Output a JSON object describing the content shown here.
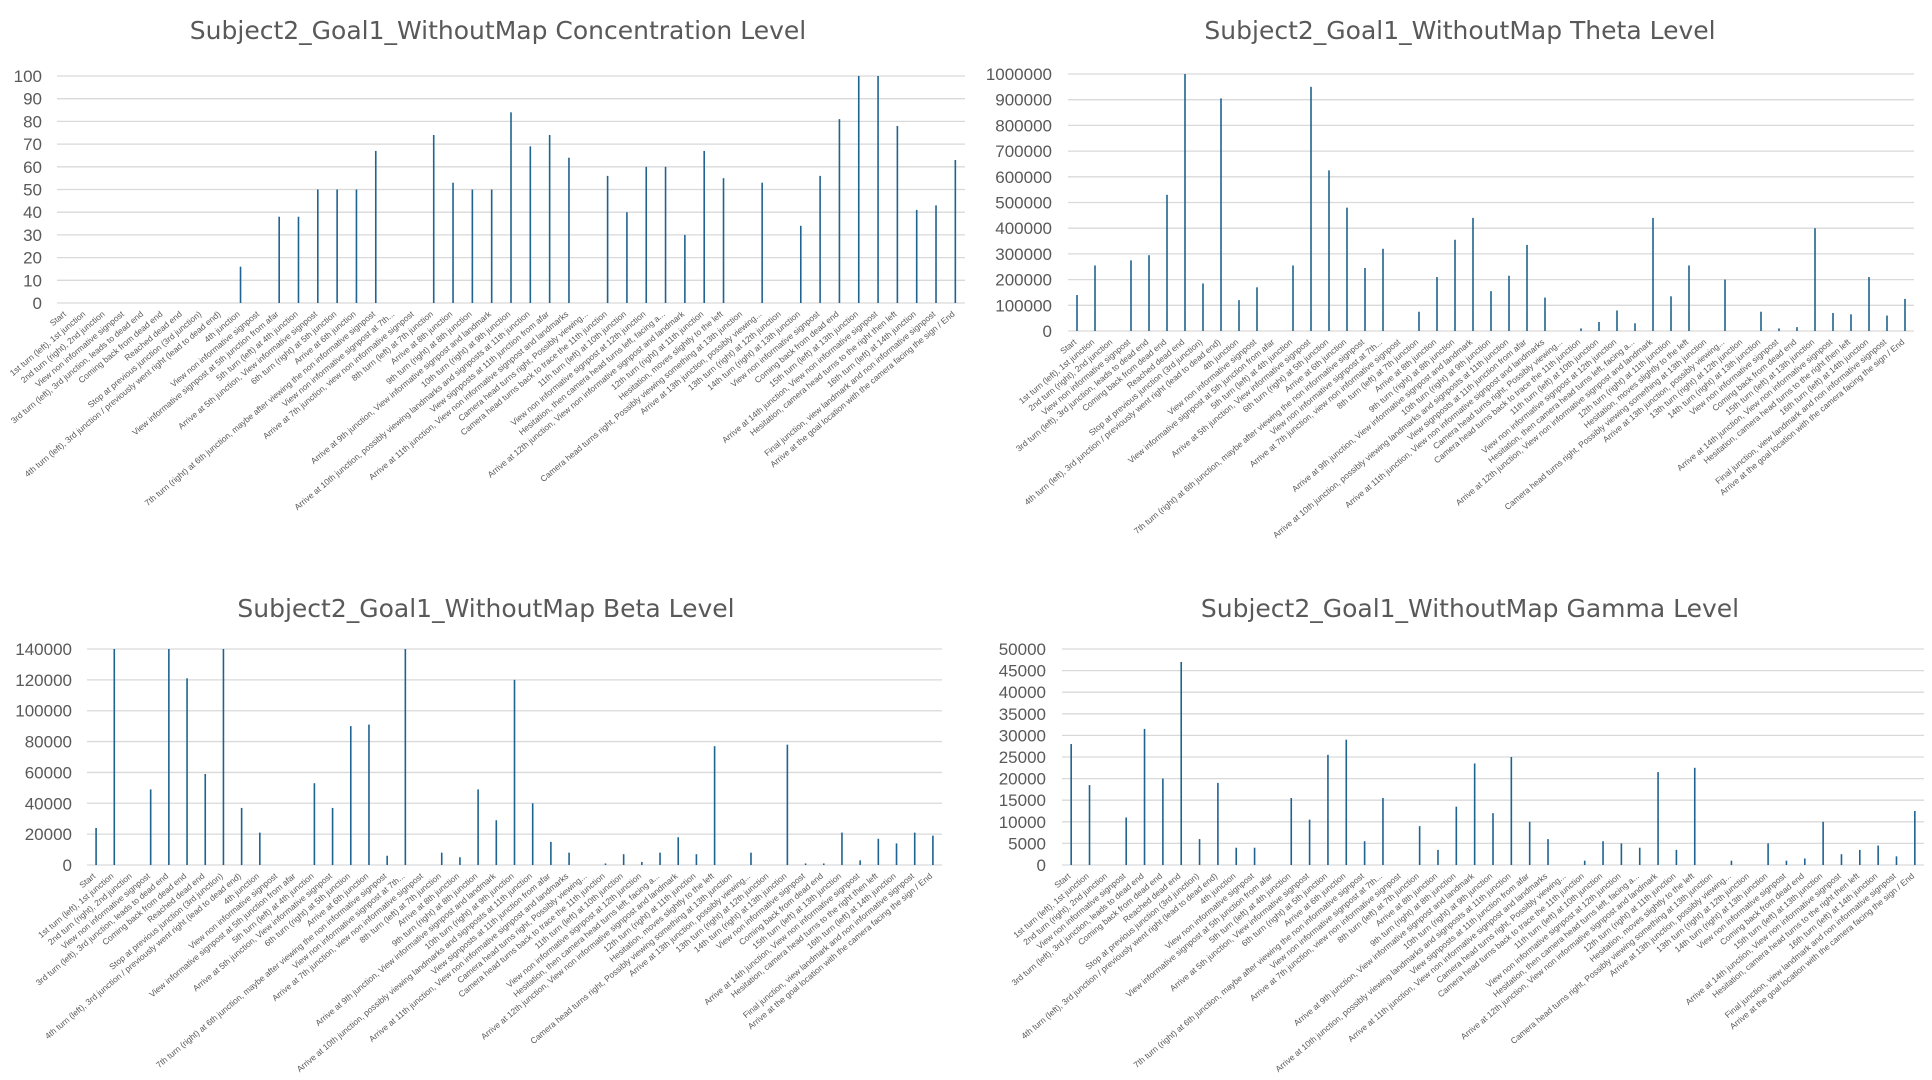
{
  "colors": {
    "bar": "#1f6391",
    "grid": "#d9d9d9",
    "text": "#595959"
  },
  "categories": [
    "Start",
    "1st turn (left), 1st junction",
    "2nd turn (right), 2nd junction",
    "View non informative signpost",
    "3rd turn (left), 3rd junction, leads to dead end",
    "Coming back from dead end",
    "Reached dead end",
    "Stop at previous junction (3rd junction)",
    "4th turn (left), 3rd junction / previously went right (lead to dead end)",
    "4th junction",
    "View non informative signpost",
    "View informative signpost at 5th junction from afar",
    "5th turn (left) at 4th junction",
    "Arrive at 5th junction, View informative signpost",
    "6th turn (right) at 5th junction",
    "Arrive at 6th junction",
    "7th turn (right) at 6th junction, maybe after viewing the non informative signpost",
    "View non informative signpost at 7th...",
    "Arrive at 7th junction, view non informative signpost",
    "8th turn (left) at 7th junction",
    "Arrive at 8th junction",
    "9th turn (right) at 8th junction",
    "Arrive at 9th junction, View informative signpost and landmark",
    "10th turn (right) at 9th junction",
    "Arrive at 10th junction, possibly viewing landmarks and signposts at 11th junction",
    "View signposts at 11th junction from afar",
    "Arrive at 11th junction, View non informative signpost and landmarks",
    "Camera head turns right, Possibly viewing...",
    "Camera head turns back to trace the 11th junction",
    "11th turn (left) at 10th junction",
    "View non informative signpost at 12th junction",
    "Hesitation, then camera head turns left, facing a...",
    "Arrive at 12th junction, View non informative signpost and landmark",
    "12th turn (right) at 11th junction",
    "Hesitation, moves slightly to the left",
    "Camera head turns right, Possibly viewing something at 13th junction",
    "Arrive at 13th junction, possibly viewing...",
    "13th turn (right) at 12th junction",
    "14th turn (right) at 13th junction",
    "View non informative signpost",
    "Coming back from dead end",
    "15th turn (left) at 13th junction",
    "Arrive at 14th junction, View non informative signpost",
    "Hesitation, camera head turns to the right then left",
    "16th turn (left) at 14th junction",
    "Final junction, view landmark and non informative signpost",
    "Arrive at the goal location with the camera facing the sign / End"
  ],
  "chart_data": [
    {
      "type": "bar",
      "title": "Subject2_Goal1_WithoutMap Concentration Level",
      "ylim": [
        0,
        100
      ],
      "yticks": [
        "0",
        "10",
        "20",
        "30",
        "40",
        "50",
        "60",
        "70",
        "80",
        "90",
        "100"
      ],
      "grid": true,
      "values": {
        "9": 16,
        "11": 38,
        "12": 38,
        "13": 50,
        "14": 50,
        "15": 50,
        "16": 67,
        "19": 74,
        "20": 53,
        "21": 50,
        "22": 50,
        "23": 84,
        "24": 69,
        "25": 74,
        "26": 64,
        "28": 56,
        "29": 40,
        "30": 60,
        "31": 60,
        "32": 30,
        "33": 67,
        "34": 55,
        "36": 53,
        "38": 34,
        "39": 56,
        "40": 81,
        "41": 100,
        "42": 100,
        "43": 78,
        "44": 41,
        "45": 43,
        "46": 63
      }
    },
    {
      "type": "bar",
      "title": "Subject2_Goal1_WithoutMap Theta Level",
      "ylim": [
        0,
        1000000
      ],
      "yticks": [
        "0",
        "100000",
        "200000",
        "300000",
        "400000",
        "500000",
        "600000",
        "700000",
        "800000",
        "900000",
        "1000000"
      ],
      "grid": true,
      "values": {
        "0": 140000,
        "1": 255000,
        "3": 275000,
        "4": 295000,
        "5": 530000,
        "6": 1000000,
        "7": 185000,
        "8": 905000,
        "9": 120000,
        "10": 170000,
        "12": 255000,
        "13": 950000,
        "14": 625000,
        "15": 480000,
        "16": 245000,
        "17": 320000,
        "19": 75000,
        "20": 210000,
        "21": 355000,
        "22": 440000,
        "23": 155000,
        "24": 215000,
        "25": 335000,
        "26": 130000,
        "28": 10000,
        "29": 35000,
        "30": 80000,
        "31": 30000,
        "32": 440000,
        "33": 135000,
        "34": 255000,
        "36": 200000,
        "38": 75000,
        "39": 10000,
        "40": 15000,
        "41": 400000,
        "42": 70000,
        "43": 65000,
        "44": 210000,
        "45": 60000,
        "46": 125000
      }
    },
    {
      "type": "bar",
      "title": "Subject2_Goal1_WithoutMap Beta Level",
      "ylim": [
        0,
        140000
      ],
      "yticks": [
        "0",
        "20000",
        "40000",
        "60000",
        "80000",
        "100000",
        "120000",
        "140000"
      ],
      "grid": true,
      "values": {
        "0": 24000,
        "1": 140000,
        "3": 49000,
        "4": 140000,
        "5": 121000,
        "6": 59000,
        "7": 140000,
        "8": 37000,
        "9": 21000,
        "12": 53000,
        "13": 37000,
        "14": 90000,
        "15": 91000,
        "16": 6000,
        "17": 140000,
        "19": 8000,
        "20": 5000,
        "21": 49000,
        "22": 29000,
        "23": 120000,
        "24": 40000,
        "25": 15000,
        "26": 8000,
        "28": 1000,
        "29": 7000,
        "30": 2000,
        "31": 8000,
        "32": 18000,
        "33": 7000,
        "34": 77000,
        "36": 8000,
        "38": 78000,
        "39": 1000,
        "40": 1000,
        "41": 21000,
        "42": 3000,
        "43": 17000,
        "44": 14000,
        "45": 21000,
        "46": 19000
      }
    },
    {
      "type": "bar",
      "title": "Subject2_Goal1_WithoutMap Gamma Level",
      "ylim": [
        0,
        50000
      ],
      "yticks": [
        "0",
        "5000",
        "10000",
        "15000",
        "20000",
        "25000",
        "30000",
        "35000",
        "40000",
        "45000",
        "50000"
      ],
      "grid": true,
      "values": {
        "0": 28000,
        "1": 18500,
        "3": 11000,
        "4": 31500,
        "5": 20000,
        "6": 47000,
        "7": 6000,
        "8": 19000,
        "9": 4000,
        "10": 4000,
        "12": 15500,
        "13": 10500,
        "14": 25500,
        "15": 29000,
        "16": 5500,
        "17": 15500,
        "19": 9000,
        "20": 3500,
        "21": 13500,
        "22": 23500,
        "23": 12000,
        "24": 25000,
        "25": 10000,
        "26": 6000,
        "28": 1000,
        "29": 5500,
        "30": 5000,
        "31": 4000,
        "32": 21500,
        "33": 3500,
        "34": 22500,
        "36": 1000,
        "38": 5000,
        "39": 1000,
        "40": 1500,
        "41": 10000,
        "42": 2500,
        "43": 3500,
        "44": 4500,
        "45": 2000,
        "46": 12500
      }
    }
  ]
}
